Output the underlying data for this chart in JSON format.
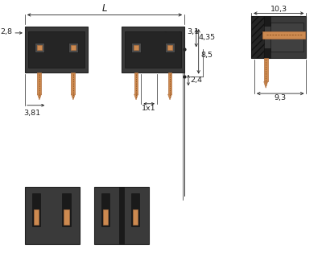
{
  "bg_color": "#ffffff",
  "line_color": "#000000",
  "dark_gray": "#3a3a3a",
  "mid_gray": "#555555",
  "light_gray": "#888888",
  "copper_color": "#cd8a50",
  "copper_dark": "#b07040",
  "dim_line_color": "#444444",
  "title": "",
  "dims": {
    "L_label": "L",
    "d1": "2,8",
    "d2": "3,1",
    "d3": "4,35",
    "d4": "8,5",
    "d5": "3,81",
    "d6": "1x1",
    "d7": "2,4",
    "d8": "10,3",
    "d9": "9,3"
  }
}
